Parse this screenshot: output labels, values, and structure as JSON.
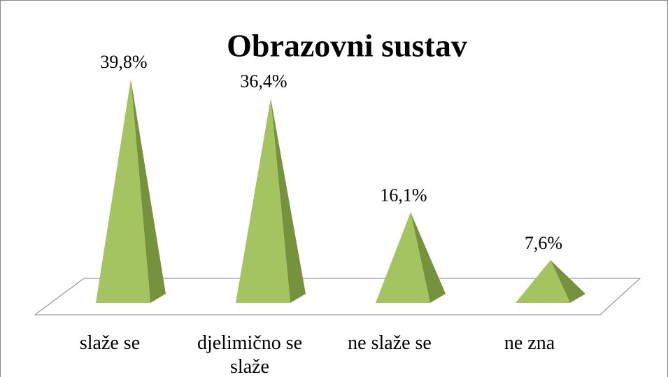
{
  "chart_data": {
    "type": "pyramid",
    "title": "Obrazovni sustav",
    "categories": [
      "slaže se",
      "djelimično se slaže",
      "ne slaže se",
      "ne zna"
    ],
    "values": [
      39.8,
      36.4,
      16.1,
      7.6
    ],
    "value_labels": [
      "39,8%",
      "36,4%",
      "16,1%",
      "7,6%"
    ],
    "color": "#a4c462",
    "side_color": "#76923c"
  }
}
